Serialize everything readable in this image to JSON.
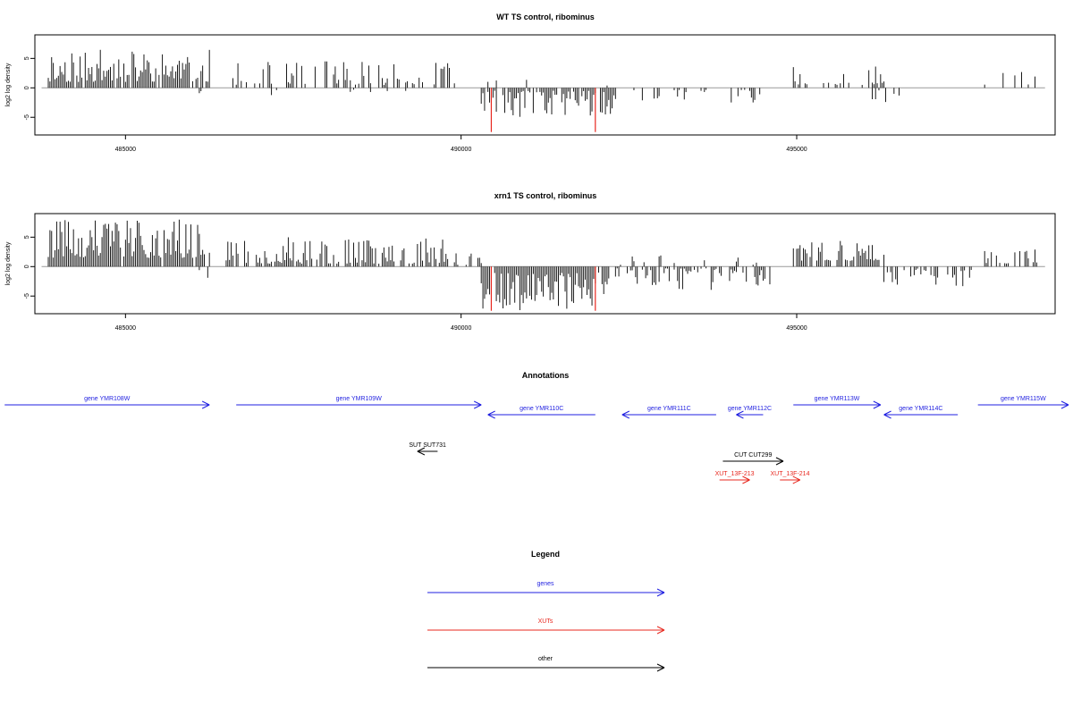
{
  "colors": {
    "signal": "#000000",
    "highlight": "#e8281f",
    "gene": "#1f1fe0",
    "xut": "#e8281f",
    "other": "#000000",
    "baseline": "#9a9a9a",
    "frame": "#000000"
  },
  "chart_data": [
    {
      "type": "bar",
      "title": "WT TS control, ribominus",
      "ylabel": "log2 log density",
      "xlabel": "",
      "xlim": [
        483650,
        498850
      ],
      "ylim": [
        -8,
        9
      ],
      "x_ticks": [
        485000,
        490000,
        495000
      ],
      "x_tick_labels": [
        "485000",
        "490000",
        "495000"
      ],
      "y_ticks": [
        -5,
        0,
        5
      ],
      "y_tick_labels": [
        "-5",
        "0",
        "5"
      ],
      "x_step": 25,
      "grid": false,
      "baseline": {
        "x_start": 483750,
        "x_end": 498700,
        "y": 0
      },
      "segments": [
        {
          "start": 483850,
          "end": 486250,
          "sign": 1,
          "min": 1.0,
          "max": 6.5,
          "density": 0.85,
          "seed": 11
        },
        {
          "start": 486100,
          "end": 486250,
          "sign": -1,
          "min": 0.5,
          "max": 2.5,
          "density": 0.35,
          "seed": 12
        },
        {
          "start": 486600,
          "end": 489900,
          "sign": 1,
          "min": 0.5,
          "max": 4.5,
          "density": 0.45,
          "seed": 13
        },
        {
          "start": 486800,
          "end": 489900,
          "sign": -1,
          "min": 0.3,
          "max": 1.5,
          "density": 0.08,
          "seed": 14
        },
        {
          "start": 490300,
          "end": 492300,
          "sign": -1,
          "min": 0.5,
          "max": 5.0,
          "density": 0.8,
          "seed": 15
        },
        {
          "start": 490300,
          "end": 492300,
          "sign": 1,
          "min": 0.3,
          "max": 2.0,
          "density": 0.06,
          "seed": 16
        },
        {
          "start": 492400,
          "end": 494500,
          "sign": -1,
          "min": 0.3,
          "max": 2.5,
          "density": 0.22,
          "seed": 17
        },
        {
          "start": 494950,
          "end": 496300,
          "sign": 1,
          "min": 0.5,
          "max": 4.0,
          "density": 0.38,
          "seed": 18
        },
        {
          "start": 496100,
          "end": 496600,
          "sign": -1,
          "min": 0.3,
          "max": 2.5,
          "density": 0.22,
          "seed": 19
        },
        {
          "start": 497800,
          "end": 498700,
          "sign": 1,
          "min": 0.5,
          "max": 2.8,
          "density": 0.35,
          "seed": 20
        }
      ],
      "highlights": [
        {
          "x": 490450,
          "y": -7.5
        },
        {
          "x": 492000,
          "y": -7.5
        }
      ]
    },
    {
      "type": "bar",
      "title": "xrn1 TS control, ribominus",
      "ylabel": "log2 log density",
      "xlabel": "",
      "xlim": [
        483650,
        498850
      ],
      "ylim": [
        -8,
        9
      ],
      "x_ticks": [
        485000,
        490000,
        495000
      ],
      "x_tick_labels": [
        "485000",
        "490000",
        "495000"
      ],
      "y_ticks": [
        -5,
        0,
        5
      ],
      "y_tick_labels": [
        "-5",
        "0",
        "5"
      ],
      "x_step": 25,
      "grid": false,
      "baseline": {
        "x_start": 483750,
        "x_end": 498700,
        "y": 0
      },
      "segments": [
        {
          "start": 483850,
          "end": 486250,
          "sign": 1,
          "min": 1.5,
          "max": 8.0,
          "density": 0.95,
          "seed": 31
        },
        {
          "start": 486100,
          "end": 486250,
          "sign": -1,
          "min": 0.5,
          "max": 2.0,
          "density": 0.3,
          "seed": 32
        },
        {
          "start": 486500,
          "end": 489800,
          "sign": 1,
          "min": 0.5,
          "max": 5.0,
          "density": 0.75,
          "seed": 33
        },
        {
          "start": 489900,
          "end": 490300,
          "sign": 1,
          "min": 0.3,
          "max": 2.5,
          "density": 0.5,
          "seed": 34
        },
        {
          "start": 490300,
          "end": 492200,
          "sign": -1,
          "min": 1.0,
          "max": 7.5,
          "density": 0.95,
          "seed": 35
        },
        {
          "start": 492300,
          "end": 494600,
          "sign": -1,
          "min": 0.3,
          "max": 4.0,
          "density": 0.5,
          "seed": 36
        },
        {
          "start": 492300,
          "end": 494600,
          "sign": 1,
          "min": 0.3,
          "max": 2.5,
          "density": 0.12,
          "seed": 37
        },
        {
          "start": 494950,
          "end": 496300,
          "sign": 1,
          "min": 1.0,
          "max": 4.5,
          "density": 0.8,
          "seed": 38
        },
        {
          "start": 496300,
          "end": 497600,
          "sign": -1,
          "min": 0.3,
          "max": 3.5,
          "density": 0.45,
          "seed": 39
        },
        {
          "start": 497800,
          "end": 498700,
          "sign": 1,
          "min": 0.5,
          "max": 3.0,
          "density": 0.55,
          "seed": 40
        }
      ],
      "highlights": [
        {
          "x": 490450,
          "y": -7.5
        },
        {
          "x": 492000,
          "y": -7.5
        }
      ]
    }
  ],
  "annotations": {
    "title": "Annotations",
    "features": [
      {
        "label": "gene YMR108W",
        "start": 483200,
        "end": 486250,
        "strand": "+",
        "kind": "gene",
        "row": 0
      },
      {
        "label": "gene YMR109W",
        "start": 486650,
        "end": 490300,
        "strand": "+",
        "kind": "gene",
        "row": 0
      },
      {
        "label": "gene YMR110C",
        "start": 490400,
        "end": 492000,
        "strand": "-",
        "kind": "gene",
        "row": 1
      },
      {
        "label": "gene YMR111C",
        "start": 492400,
        "end": 493800,
        "strand": "-",
        "kind": "gene",
        "row": 1
      },
      {
        "label": "gene YMR112C",
        "start": 494100,
        "end": 494500,
        "strand": "-",
        "kind": "gene",
        "row": 1
      },
      {
        "label": "gene YMR113W",
        "start": 494950,
        "end": 496250,
        "strand": "+",
        "kind": "gene",
        "row": 0
      },
      {
        "label": "gene YMR114C",
        "start": 496300,
        "end": 497400,
        "strand": "-",
        "kind": "gene",
        "row": 1
      },
      {
        "label": "gene YMR115W",
        "start": 497700,
        "end": 499200,
        "strand": "+",
        "kind": "gene",
        "row": 0
      },
      {
        "label": "SUT SUT731",
        "start": 489350,
        "end": 489650,
        "strand": "-",
        "kind": "other",
        "row": 2
      },
      {
        "label": "CUT CUT299",
        "start": 493900,
        "end": 494800,
        "strand": "+",
        "kind": "other",
        "row": 3
      },
      {
        "label": "XUT_13F-213",
        "start": 493850,
        "end": 494300,
        "strand": "+",
        "kind": "xut",
        "row": 4
      },
      {
        "label": "XUT_13F-214",
        "start": 494750,
        "end": 495050,
        "strand": "+",
        "kind": "xut",
        "row": 4
      }
    ]
  },
  "legend": {
    "title": "Legend",
    "items": [
      {
        "label": "genes",
        "kind": "gene"
      },
      {
        "label": "XUTs",
        "kind": "xut"
      },
      {
        "label": "other",
        "kind": "other"
      }
    ]
  }
}
